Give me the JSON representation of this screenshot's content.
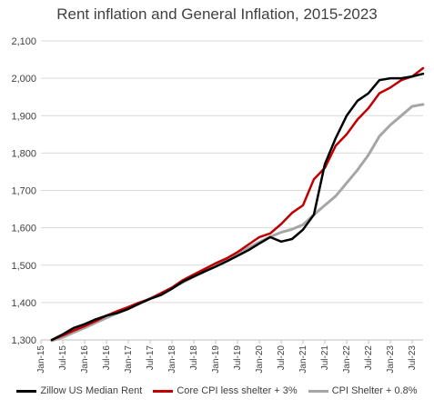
{
  "chart_data": {
    "type": "line",
    "title": "Rent inflation and General Inflation, 2015-2023",
    "xlabel": "",
    "ylabel": "",
    "ylim": [
      1300,
      2100
    ],
    "yticks": [
      1300,
      1400,
      1500,
      1600,
      1700,
      1800,
      1900,
      2000,
      2100
    ],
    "ytick_labels": [
      "1,300",
      "1,400",
      "1,500",
      "1,600",
      "1,700",
      "1,800",
      "1,900",
      "2,000",
      "2,100"
    ],
    "xticks": [
      "Jan-15",
      "Jul-15",
      "Jan-16",
      "Jul-16",
      "Jan-17",
      "Jul-17",
      "Jan-18",
      "Jul-18",
      "Jan-19",
      "Jul-19",
      "Jan-20",
      "Jul-20",
      "Jan-21",
      "Jul-21",
      "Jan-22",
      "Jul-22",
      "Jan-23",
      "Jul-23"
    ],
    "grid": "horizontal",
    "legend_position": "bottom",
    "x": [
      "Apr-15",
      "Jul-15",
      "Oct-15",
      "Jan-16",
      "Apr-16",
      "Jul-16",
      "Oct-16",
      "Jan-17",
      "Apr-17",
      "Jul-17",
      "Oct-17",
      "Jan-18",
      "Apr-18",
      "Jul-18",
      "Oct-18",
      "Jan-19",
      "Apr-19",
      "Jul-19",
      "Oct-19",
      "Jan-20",
      "Apr-20",
      "Jul-20",
      "Oct-20",
      "Jan-21",
      "Apr-21",
      "Jul-21",
      "Oct-21",
      "Jan-22",
      "Apr-22",
      "Jul-22",
      "Oct-22",
      "Jan-23",
      "Apr-23",
      "Jul-23",
      "Oct-23"
    ],
    "series": [
      {
        "name": "Zillow US Median Rent",
        "color": "#000000",
        "values": [
          1300,
          1315,
          1332,
          1342,
          1355,
          1365,
          1372,
          1383,
          1397,
          1410,
          1420,
          1437,
          1456,
          1470,
          1483,
          1496,
          1510,
          1525,
          1540,
          1558,
          1575,
          1563,
          1570,
          1595,
          1635,
          1770,
          1840,
          1900,
          1940,
          1960,
          1995,
          2000,
          2000,
          2005,
          2012
        ]
      },
      {
        "name": "Core CPI less shelter + 3%",
        "color": "#c00000",
        "values": [
          1300,
          1312,
          1325,
          1337,
          1350,
          1365,
          1377,
          1388,
          1400,
          1410,
          1425,
          1440,
          1460,
          1475,
          1490,
          1505,
          1518,
          1535,
          1555,
          1575,
          1585,
          1610,
          1640,
          1660,
          1730,
          1760,
          1820,
          1850,
          1890,
          1920,
          1960,
          1975,
          1995,
          2005,
          2027
        ]
      },
      {
        "name": "CPI Shelter + 0.8%",
        "color": "#a6a6a6",
        "values": [
          1298,
          1307,
          1320,
          1332,
          1346,
          1359,
          1372,
          1384,
          1397,
          1411,
          1425,
          1439,
          1454,
          1469,
          1484,
          1499,
          1515,
          1530,
          1546,
          1562,
          1576,
          1588,
          1596,
          1608,
          1635,
          1660,
          1685,
          1720,
          1755,
          1795,
          1845,
          1875,
          1900,
          1925,
          1930
        ]
      }
    ]
  }
}
